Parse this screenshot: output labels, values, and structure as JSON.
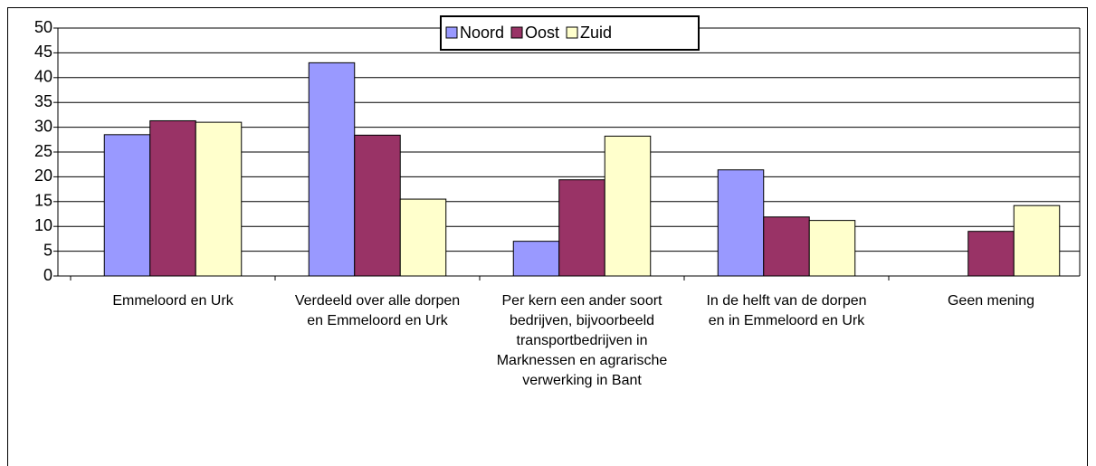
{
  "chart_data": {
    "type": "bar",
    "categories": [
      "Emmeloord en Urk",
      "Verdeeld over alle dorpen en Emmeloord en Urk",
      "Per kern een ander soort bedrijven, bijvoorbeeld transportbedrijven in Marknessen en agrarische verwerking in Bant",
      "In de helft van de dorpen en in Emmeloord en Urk",
      "Geen mening"
    ],
    "series": [
      {
        "name": "Noord",
        "color": "#9999ff",
        "values": [
          28.5,
          43,
          7,
          21.4,
          0
        ]
      },
      {
        "name": "Oost",
        "color": "#993366",
        "values": [
          31.3,
          28.4,
          19.4,
          11.9,
          9
        ]
      },
      {
        "name": "Zuid",
        "color": "#ffffcc",
        "values": [
          31,
          15.5,
          28.2,
          11.2,
          14.2
        ]
      }
    ],
    "ylim": [
      0,
      50
    ],
    "yticks": [
      0,
      5,
      10,
      15,
      20,
      25,
      30,
      35,
      40,
      45,
      50
    ],
    "grid": true,
    "legend": "top"
  }
}
